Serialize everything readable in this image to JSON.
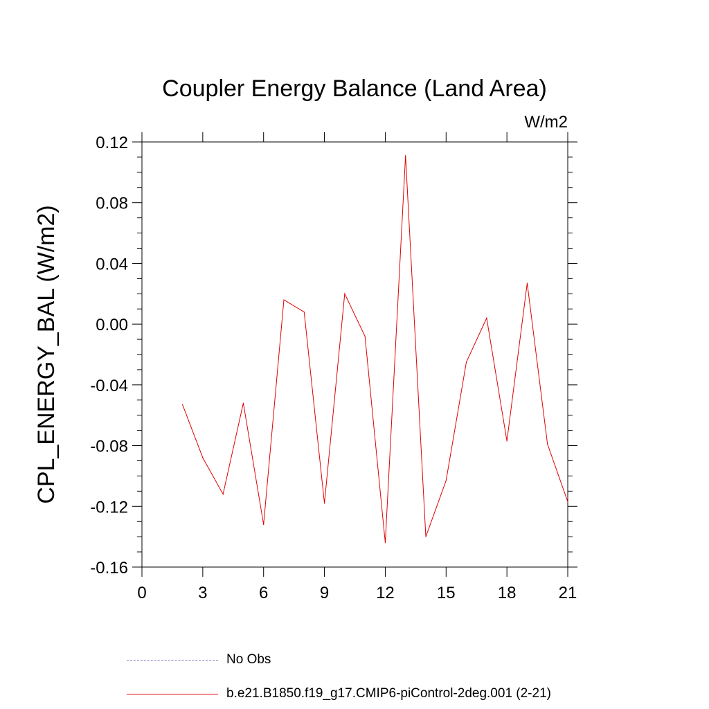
{
  "chart_data": {
    "type": "line",
    "title": "Coupler Energy Balance (Land Area)",
    "units_label": "W/m2",
    "ylabel": "CPL_ENERGY_BAL  (W/m2)",
    "xlabel": "",
    "xlim": [
      0,
      21
    ],
    "ylim": [
      -0.16,
      0.12
    ],
    "xticks": [
      0,
      3,
      6,
      9,
      12,
      15,
      18,
      21
    ],
    "xtick_labels": [
      "0",
      "3",
      "6",
      "9",
      "12",
      "15",
      "18",
      "21"
    ],
    "yticks": [
      -0.16,
      -0.12,
      -0.08,
      -0.04,
      0.0,
      0.04,
      0.08,
      0.12
    ],
    "ytick_labels": [
      "-0.16",
      "-0.12",
      "-0.08",
      "-0.04",
      "0.00",
      "0.04",
      "0.08",
      "0.12"
    ],
    "series": [
      {
        "name": "b.e21.B1850.f19_g17.CMIP6-piControl-2deg.001 (2-21)",
        "color": "#e00000",
        "style": "solid",
        "x": [
          2,
          3,
          4,
          5,
          6,
          7,
          8,
          9,
          10,
          11,
          12,
          13,
          14,
          15,
          16,
          17,
          18,
          19,
          20,
          21
        ],
        "y": [
          -0.053,
          -0.088,
          -0.112,
          -0.052,
          -0.132,
          0.016,
          0.008,
          -0.118,
          0.02,
          -0.008,
          -0.144,
          0.111,
          -0.14,
          -0.103,
          -0.025,
          0.004,
          -0.077,
          0.027,
          -0.079,
          -0.117
        ]
      }
    ],
    "legend": [
      {
        "label": "No Obs",
        "color": "#8080c8",
        "style": "dashed"
      },
      {
        "label": "b.e21.B1850.f19_g17.CMIP6-piControl-2deg.001 (2-21)",
        "color": "#e00000",
        "style": "solid"
      }
    ],
    "legend_position": "bottom-center",
    "grid": false
  }
}
